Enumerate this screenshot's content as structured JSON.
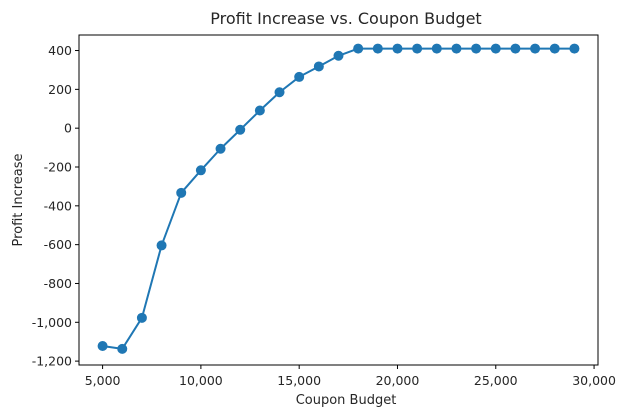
{
  "chart_data": {
    "type": "line",
    "title": "Profit Increase vs. Coupon Budget",
    "xlabel": "Coupon Budget",
    "ylabel": "Profit Increase",
    "xlim": [
      3800,
      30200
    ],
    "ylim": [
      -1220,
      480
    ],
    "x_ticks": [
      5000,
      10000,
      15000,
      20000,
      25000,
      30000
    ],
    "x_tick_labels": [
      "5,000",
      "10,000",
      "15,000",
      "20,000",
      "25,000",
      "30,000"
    ],
    "y_ticks": [
      -1200,
      -1000,
      -800,
      -600,
      -400,
      -200,
      0,
      200,
      400
    ],
    "y_tick_labels": [
      "-1,200",
      "-1,000",
      "-800",
      "-600",
      "-400",
      "-200",
      "0",
      "200",
      "400"
    ],
    "grid": false,
    "series": [
      {
        "color": "#1f77b4",
        "marker": "circle",
        "x": [
          5000,
          6000,
          7000,
          8000,
          9000,
          10000,
          11000,
          12000,
          13000,
          14000,
          15000,
          16000,
          17000,
          18000,
          19000,
          20000,
          21000,
          22000,
          23000,
          24000,
          25000,
          26000,
          27000,
          28000,
          29000
        ],
        "y": [
          -1122,
          -1137,
          -977,
          -604,
          -333,
          -217,
          -106,
          -8,
          91,
          185,
          264,
          318,
          373,
          410,
          410,
          410,
          410,
          410,
          410,
          410,
          410,
          410,
          410,
          410,
          410
        ]
      }
    ]
  }
}
